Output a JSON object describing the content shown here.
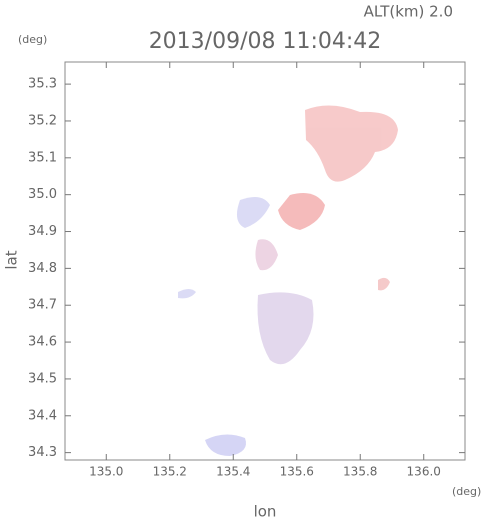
{
  "chart_data": {
    "type": "map",
    "title": "2013/09/08 11:04:42",
    "altitude_label": "ALT(km) 2.0",
    "x_label": "lon",
    "x_unit": "(deg)",
    "y_label": "lat",
    "y_unit": "(deg)",
    "xlim": [
      134.87,
      136.13
    ],
    "xticks": [
      {
        "value": 135.0,
        "label": "135.0"
      },
      135.2,
      135.4,
      135.6,
      135.8,
      {
        "value": 136.0,
        "label": "136.0"
      }
    ],
    "ylim": [
      34.28,
      35.36
    ],
    "yticks": [
      34.3,
      34.4,
      34.5,
      34.6,
      34.7,
      34.8,
      34.9,
      {
        "value": 35.0,
        "label": "35.0"
      },
      35.1,
      35.2,
      35.3
    ]
  }
}
